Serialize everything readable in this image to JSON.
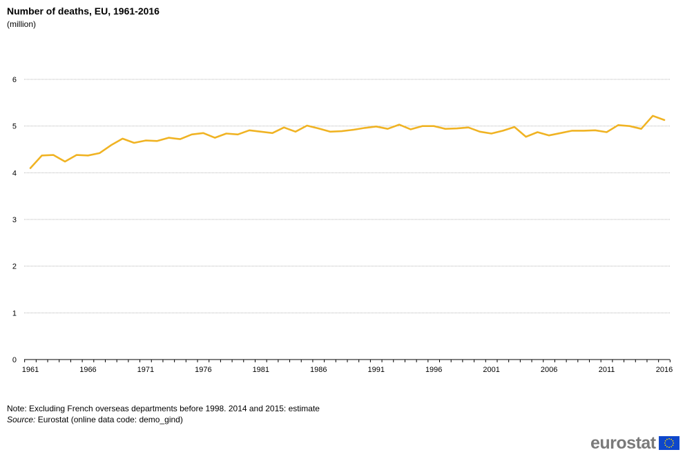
{
  "header": {
    "title": "Number of deaths, EU, 1961-2016",
    "subtitle": "(million)"
  },
  "footer": {
    "note": "Note: Excluding French overseas departments before 1998. 2014 and 2015: estimate",
    "source_label": "Source:",
    "source_text": "Eurostat (online data code: demo_gind)",
    "logo_text": "eurostat"
  },
  "colors": {
    "line": "#f0b323",
    "grid": "#b3b3b3",
    "axis": "#000000",
    "eu_flag_blue": "#0e47cb",
    "eu_flag_star": "#ffdd00"
  },
  "chart_data": {
    "type": "line",
    "title": "Number of deaths, EU, 1961-2016",
    "subtitle": "(million)",
    "xlabel": "",
    "ylabel": "",
    "x": [
      1961,
      1962,
      1963,
      1964,
      1965,
      1966,
      1967,
      1968,
      1969,
      1970,
      1971,
      1972,
      1973,
      1974,
      1975,
      1976,
      1977,
      1978,
      1979,
      1980,
      1981,
      1982,
      1983,
      1984,
      1985,
      1986,
      1987,
      1988,
      1989,
      1990,
      1991,
      1992,
      1993,
      1994,
      1995,
      1996,
      1997,
      1998,
      1999,
      2000,
      2001,
      2002,
      2003,
      2004,
      2005,
      2006,
      2007,
      2008,
      2009,
      2010,
      2011,
      2012,
      2013,
      2014,
      2015,
      2016
    ],
    "series": [
      {
        "values": [
          4.1,
          4.37,
          4.38,
          4.24,
          4.38,
          4.37,
          4.42,
          4.59,
          4.73,
          4.64,
          4.69,
          4.68,
          4.75,
          4.72,
          4.82,
          4.85,
          4.75,
          4.84,
          4.82,
          4.91,
          4.88,
          4.85,
          4.97,
          4.88,
          5.01,
          4.95,
          4.88,
          4.89,
          4.92,
          4.96,
          4.99,
          4.94,
          5.03,
          4.93,
          5.0,
          5.0,
          4.94,
          4.95,
          4.97,
          4.88,
          4.84,
          4.9,
          4.98,
          4.77,
          4.87,
          4.8,
          4.85,
          4.9,
          4.9,
          4.91,
          4.87,
          5.02,
          5.0,
          4.94,
          5.22,
          5.13
        ]
      }
    ],
    "xticks": [
      "1961",
      "1966",
      "1971",
      "1976",
      "1981",
      "1986",
      "1991",
      "1996",
      "2001",
      "2006",
      "2011",
      "2016"
    ],
    "yticks": [
      "0",
      "1",
      "2",
      "3",
      "4",
      "5",
      "6"
    ],
    "xlim": [
      1961,
      2016
    ],
    "ylim": [
      0,
      6
    ],
    "grid": true,
    "grid_style": "dotted horizontal",
    "legend": "none"
  }
}
